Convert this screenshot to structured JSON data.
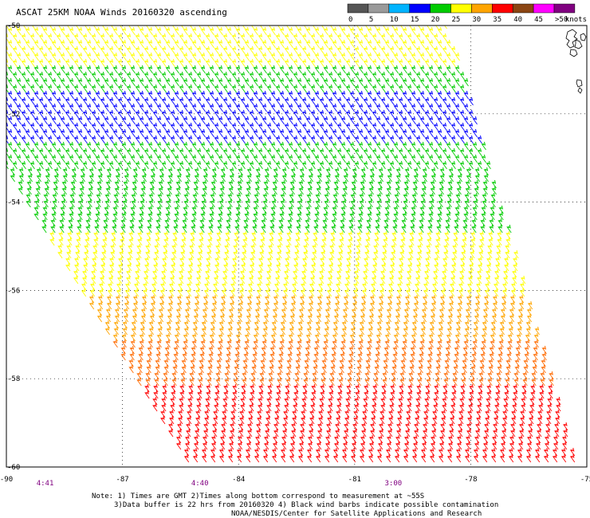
{
  "chart_data": {
    "type": "wind-barb-map",
    "title": "ASCAT 25KM NOAA Winds 20160320 ascending",
    "legend": {
      "label_suffix": "knots",
      "bins": [
        {
          "label": "0",
          "color": "#555555"
        },
        {
          "label": "5",
          "color": "#9a9a9a"
        },
        {
          "label": "10",
          "color": "#00b4ff"
        },
        {
          "label": "15",
          "color": "#0000ff"
        },
        {
          "label": "20",
          "color": "#00cc00"
        },
        {
          "label": "25",
          "color": "#ffff00"
        },
        {
          "label": "30",
          "color": "#ffa500"
        },
        {
          "label": "35",
          "color": "#ff0000"
        },
        {
          "label": "40",
          "color": "#8b4513"
        },
        {
          "label": "45",
          "color": "#ff00ff"
        },
        {
          "label": ">50",
          "color": "#800080"
        }
      ]
    },
    "x_axis": {
      "ticks": [
        "-90",
        "-87",
        "-84",
        "-81",
        "-78",
        "-75"
      ],
      "range": [
        -90,
        -75
      ]
    },
    "y_axis": {
      "ticks": [
        "-50",
        "-52",
        "-54",
        "-56",
        "-58",
        "-60"
      ],
      "range": [
        -60,
        -50
      ]
    },
    "times": [
      {
        "label": "4:41",
        "lon": -89
      },
      {
        "label": "4:40",
        "lon": -85
      },
      {
        "label": "3:00",
        "lon": -80
      }
    ],
    "grid": "dotted",
    "swath_bands": [
      {
        "lat_from": -50.0,
        "lat_to": -51.0,
        "speed_bin": "20",
        "color": "#ffff00"
      },
      {
        "lat_from": -51.0,
        "lat_to": -51.6,
        "speed_bin": "15",
        "color": "#00cc00"
      },
      {
        "lat_from": -51.6,
        "lat_to": -52.7,
        "speed_bin": "10",
        "color": "#0000ff"
      },
      {
        "lat_from": -52.7,
        "lat_to": -54.8,
        "speed_bin": "15",
        "color": "#00cc00"
      },
      {
        "lat_from": -54.8,
        "lat_to": -56.2,
        "speed_bin": "20",
        "color": "#ffff00"
      },
      {
        "lat_from": -56.2,
        "lat_to": -57.2,
        "speed_bin": "25",
        "color": "#ffa500"
      },
      {
        "lat_from": -57.2,
        "lat_to": -58.2,
        "speed_bin": "30",
        "color": "#ff6a00"
      },
      {
        "lat_from": -58.2,
        "lat_to": -60.0,
        "speed_bin": "30",
        "color": "#ff0000"
      }
    ]
  },
  "notes": [
    "Note: 1) Times are GMT 2)Times along bottom correspond to measurement at ~55S",
    "3)Data buffer is 22 hrs from 20160320 4) Black wind barbs indicate possible contamination",
    "NOAA/NESDIS/Center for Satellite Applications and Research"
  ]
}
